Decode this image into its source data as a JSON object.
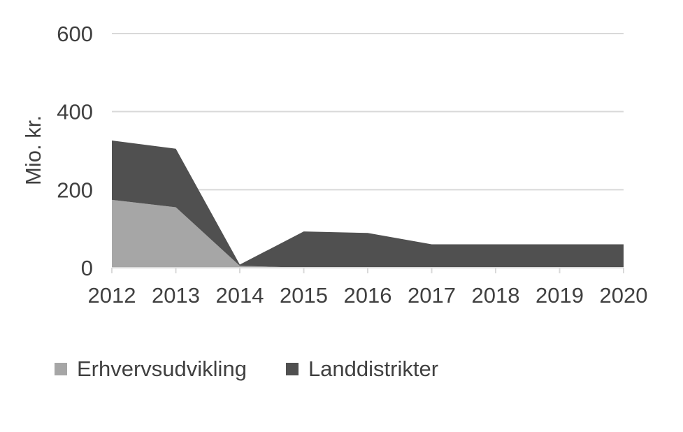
{
  "chart_data": {
    "type": "area",
    "stacked": true,
    "title": "",
    "xlabel": "",
    "ylabel": "Mio. kr.",
    "ylim": [
      0,
      600
    ],
    "yticks": [
      "0",
      "200",
      "400",
      "600"
    ],
    "categories": [
      "2012",
      "2013",
      "2014",
      "2015",
      "2016",
      "2017",
      "2018",
      "2019",
      "2020"
    ],
    "grid": true,
    "legend_position": "bottom",
    "series": [
      {
        "name": "Erhvervsudvikling",
        "color": "#a6a6a6",
        "values": [
          174,
          155,
          5,
          0,
          0,
          0,
          0,
          0,
          0
        ]
      },
      {
        "name": "Landdistrikter",
        "color": "#505050",
        "values": [
          152,
          150,
          3,
          93,
          89,
          60,
          60,
          60,
          60
        ]
      }
    ]
  }
}
